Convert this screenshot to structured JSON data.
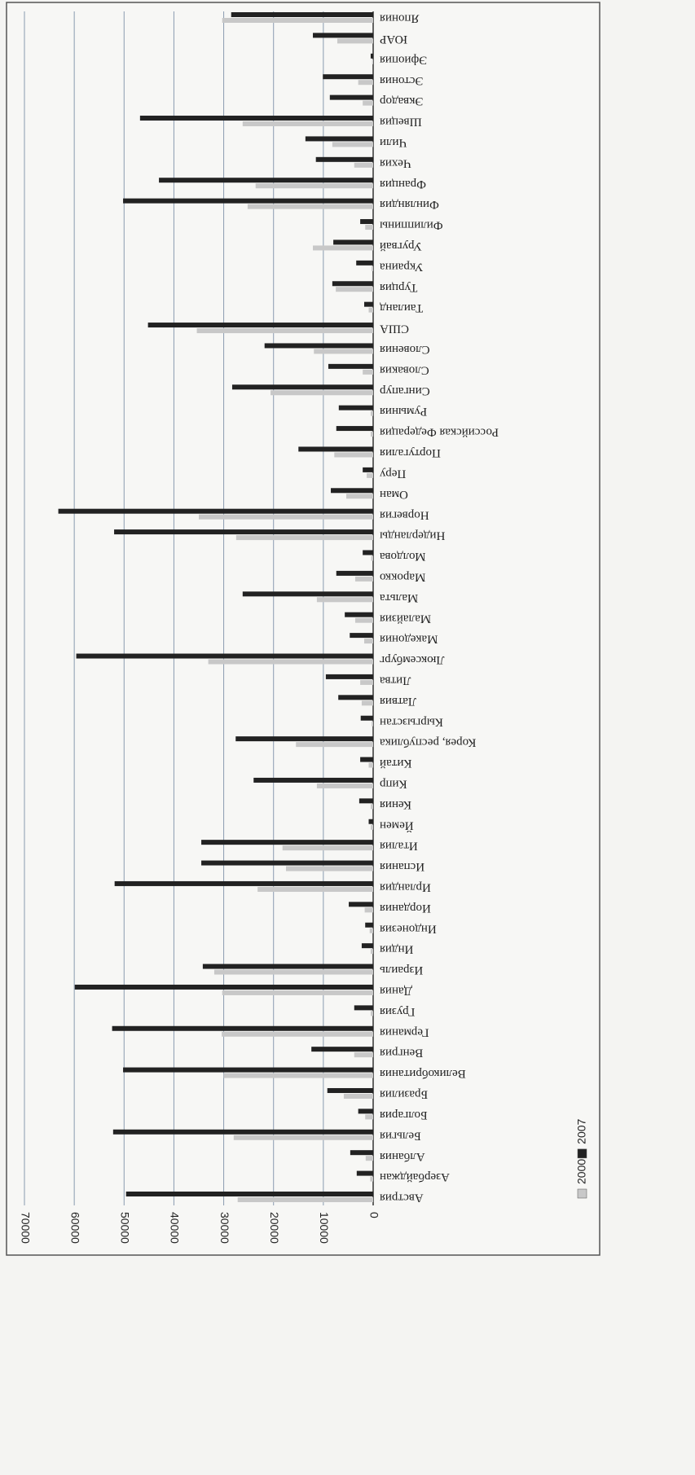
{
  "chart_data": {
    "type": "bar",
    "orientation": "horizontal",
    "categories": [
      "Австрия",
      "Азербайджан",
      "Албания",
      "Бельгия",
      "Болгария",
      "Бразилия",
      "Великобритания",
      "Венгрия",
      "Германия",
      "Грузия",
      "Дания",
      "Израиль",
      "Индия",
      "Индонезия",
      "Иордания",
      "Ирландия",
      "Испания",
      "Италия",
      "Йемен",
      "Кения",
      "Кипр",
      "Китай",
      "Корея, республика",
      "Кыргызстан",
      "Латвия",
      "Литва",
      "Люксембург",
      "Македония",
      "Малайзия",
      "Мальта",
      "Марокко",
      "Молдова",
      "Нидерланды",
      "Норвегия",
      "Оман",
      "Перу",
      "Португалия",
      "Российская Федерация",
      "Румыния",
      "Сингапур",
      "Словакия",
      "Словения",
      "США",
      "Таиланд",
      "Турция",
      "Украина",
      "Уругвай",
      "Филиппины",
      "Финляндия",
      "Франция",
      "Чехия",
      "Чили",
      "Швеция",
      "Эквадор",
      "Эстония",
      "Эфиопия",
      "ЮАР",
      "Япония"
    ],
    "series": [
      {
        "name": "2000",
        "color": "#c8c8c8",
        "values": [
          27200,
          600,
          1500,
          28000,
          1600,
          5900,
          30000,
          3800,
          30400,
          500,
          30300,
          31900,
          500,
          700,
          1700,
          23200,
          17500,
          18200,
          500,
          500,
          11300,
          900,
          15500,
          300,
          2300,
          2600,
          33100,
          1800,
          3600,
          11300,
          3600,
          400,
          27500,
          35000,
          5400,
          1300,
          7800,
          500,
          500,
          20600,
          2100,
          11900,
          35400,
          900,
          7500,
          300,
          12100,
          1600,
          25200,
          23600,
          3800,
          8200,
          26200,
          2100,
          3000,
          200,
          7200,
          30300
        ]
      },
      {
        "name": "2007",
        "color": "#222222",
        "values": [
          49600,
          3300,
          4600,
          52200,
          3000,
          9200,
          50200,
          12400,
          52400,
          3800,
          59900,
          34200,
          2300,
          1600,
          4900,
          51900,
          34500,
          34500,
          900,
          2800,
          24000,
          2600,
          27600,
          2500,
          7000,
          9500,
          59600,
          4700,
          5700,
          26200,
          7400,
          2100,
          52000,
          63200,
          8500,
          2100,
          15000,
          7400,
          6900,
          28300,
          9000,
          21800,
          45200,
          1800,
          8200,
          3400,
          8000,
          2600,
          50200,
          43000,
          11500,
          13600,
          46800,
          8700,
          10100,
          500,
          12100,
          28500
        ]
      }
    ],
    "ylim": [
      0,
      70000
    ],
    "yticks": [
      0,
      10000,
      20000,
      30000,
      40000,
      50000,
      60000,
      70000
    ],
    "grid": true,
    "legend": "bottom"
  }
}
